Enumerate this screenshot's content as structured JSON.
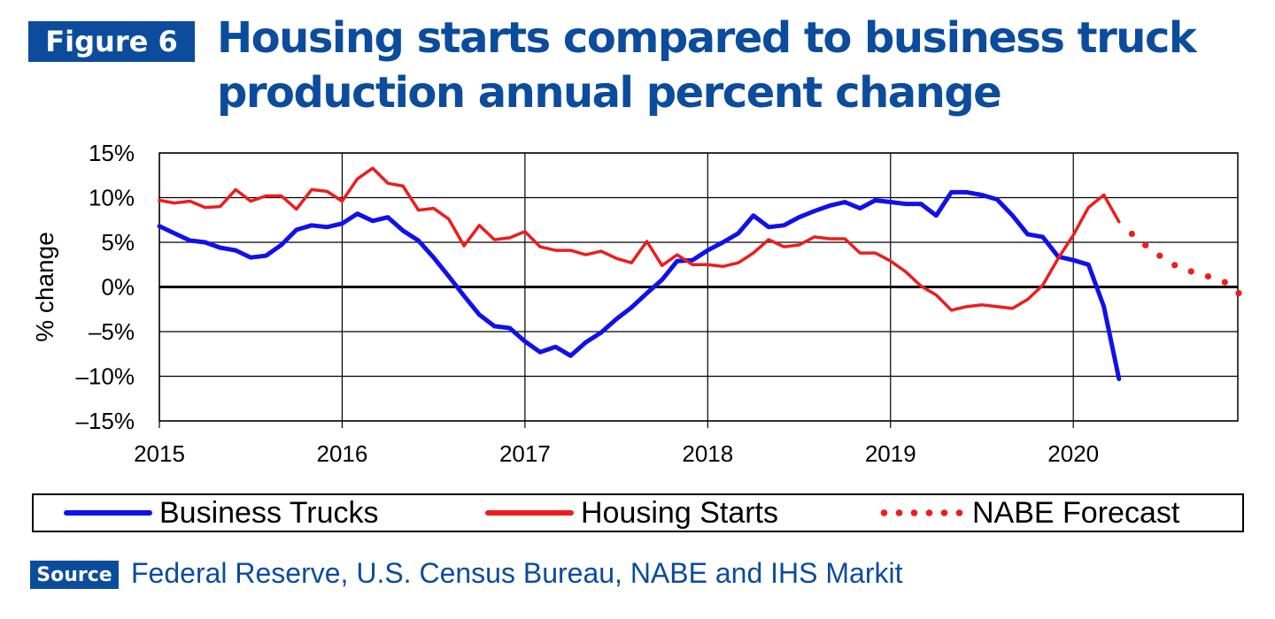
{
  "header": {
    "badge": "Figure 6",
    "title_line1": "Housing starts compared to business truck",
    "title_line2": "production annual percent change"
  },
  "colors": {
    "brand": "#0b4c9c",
    "business_trucks": "#1010ee",
    "housing_starts": "#ee1c1c",
    "forecast": "#ee1c1c"
  },
  "legend": {
    "items": [
      {
        "label": "Business Trucks",
        "style": "solid",
        "color": "#1010ee"
      },
      {
        "label": "Housing Starts",
        "style": "solid",
        "color": "#ee1c1c"
      },
      {
        "label": "NABE Forecast",
        "style": "dotted",
        "color": "#ee1c1c"
      }
    ]
  },
  "source": {
    "badge": "Source",
    "text": "Federal Reserve, U.S. Census Bureau, NABE and IHS Markit"
  },
  "chart_data": {
    "type": "line",
    "title": "Housing starts compared to business truck production annual percent change",
    "ylabel": "% change",
    "xlabel": "",
    "xlim": [
      2015,
      2020.9
    ],
    "ylim": [
      -15,
      15
    ],
    "grid": true,
    "legend_position": "bottom",
    "x_ticks": [
      2015,
      2016,
      2017,
      2018,
      2019,
      2020
    ],
    "x_tick_labels": [
      "2015",
      "2016",
      "2017",
      "2018",
      "2019",
      "2020"
    ],
    "y_ticks": [
      -15,
      -10,
      -5,
      0,
      5,
      10,
      15
    ],
    "y_tick_labels": [
      "–15%",
      "–10%",
      "–5%",
      "0%",
      "5%",
      "10%",
      "15%"
    ],
    "series": [
      {
        "name": "Business Trucks",
        "style": "solid",
        "x": [
          2015.0,
          2015.083,
          2015.167,
          2015.25,
          2015.333,
          2015.417,
          2015.5,
          2015.583,
          2015.667,
          2015.75,
          2015.833,
          2015.917,
          2016.0,
          2016.083,
          2016.167,
          2016.25,
          2016.333,
          2016.417,
          2016.5,
          2016.583,
          2016.667,
          2016.75,
          2016.833,
          2016.917,
          2017.0,
          2017.083,
          2017.167,
          2017.25,
          2017.333,
          2017.417,
          2017.5,
          2017.583,
          2017.667,
          2017.75,
          2017.833,
          2017.917,
          2018.0,
          2018.083,
          2018.167,
          2018.25,
          2018.333,
          2018.417,
          2018.5,
          2018.583,
          2018.667,
          2018.75,
          2018.833,
          2018.917,
          2019.0,
          2019.083,
          2019.167,
          2019.25,
          2019.333,
          2019.417,
          2019.5,
          2019.583,
          2019.667,
          2019.75,
          2019.833,
          2019.917,
          2020.0,
          2020.083,
          2020.167,
          2020.25
        ],
        "values": [
          6.8,
          6.0,
          5.2,
          5.0,
          4.4,
          4.1,
          3.3,
          3.5,
          4.7,
          6.4,
          6.9,
          6.7,
          7.1,
          8.2,
          7.4,
          7.8,
          6.3,
          5.2,
          3.3,
          1.2,
          -1.0,
          -3.1,
          -4.4,
          -4.6,
          -6.1,
          -7.3,
          -6.7,
          -7.7,
          -6.2,
          -5.1,
          -3.6,
          -2.3,
          -0.7,
          0.8,
          2.9,
          3.0,
          4.1,
          5.0,
          6.0,
          8.0,
          6.7,
          6.9,
          7.8,
          8.5,
          9.1,
          9.5,
          8.8,
          9.7,
          9.5,
          9.3,
          9.3,
          8.0,
          10.6,
          10.6,
          10.3,
          9.8,
          8.0,
          5.9,
          5.6,
          3.4,
          3.0,
          2.5,
          -2.2,
          -10.3
        ]
      },
      {
        "name": "Housing Starts",
        "style": "solid",
        "x": [
          2015.0,
          2015.083,
          2015.167,
          2015.25,
          2015.333,
          2015.417,
          2015.5,
          2015.583,
          2015.667,
          2015.75,
          2015.833,
          2015.917,
          2016.0,
          2016.083,
          2016.167,
          2016.25,
          2016.333,
          2016.417,
          2016.5,
          2016.583,
          2016.667,
          2016.75,
          2016.833,
          2016.917,
          2017.0,
          2017.083,
          2017.167,
          2017.25,
          2017.333,
          2017.417,
          2017.5,
          2017.583,
          2017.667,
          2017.75,
          2017.833,
          2017.917,
          2018.0,
          2018.083,
          2018.167,
          2018.25,
          2018.333,
          2018.417,
          2018.5,
          2018.583,
          2018.667,
          2018.75,
          2018.833,
          2018.917,
          2019.0,
          2019.083,
          2019.167,
          2019.25,
          2019.333,
          2019.417,
          2019.5,
          2019.583,
          2019.667,
          2019.75,
          2019.833,
          2019.917,
          2020.0,
          2020.083,
          2020.167,
          2020.25
        ],
        "values": [
          9.7,
          9.4,
          9.6,
          8.9,
          9.0,
          10.9,
          9.6,
          10.2,
          10.2,
          8.7,
          10.9,
          10.7,
          9.6,
          12.1,
          13.3,
          11.6,
          11.3,
          8.6,
          8.8,
          7.6,
          4.6,
          6.9,
          5.3,
          5.5,
          6.2,
          4.5,
          4.1,
          4.1,
          3.6,
          4.0,
          3.2,
          2.7,
          5.1,
          2.4,
          3.6,
          2.5,
          2.5,
          2.3,
          2.7,
          3.8,
          5.3,
          4.5,
          4.7,
          5.6,
          5.4,
          5.4,
          3.8,
          3.8,
          2.9,
          1.7,
          0.1,
          -0.9,
          -2.6,
          -2.2,
          -2.0,
          -2.2,
          -2.4,
          -1.4,
          0.2,
          3.2,
          5.8,
          8.9,
          10.3,
          7.3
        ]
      },
      {
        "name": "NABE Forecast",
        "style": "dotted",
        "x": [
          2020.25,
          2020.333,
          2020.417,
          2020.5,
          2020.583,
          2020.667,
          2020.75,
          2020.833,
          2020.917
        ],
        "values": [
          7.3,
          5.7,
          4.3,
          3.1,
          2.1,
          1.6,
          1.1,
          0.5,
          -0.9
        ]
      }
    ]
  }
}
